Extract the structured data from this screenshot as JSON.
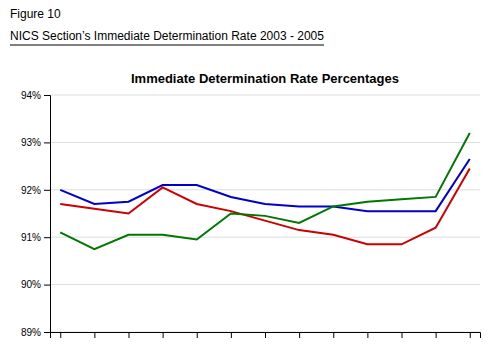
{
  "chart_data": {
    "type": "line",
    "title": "Immediate Determination Rate Percentages",
    "subtitle": "NICS Section’s Immediate Determination Rate 2003 - 2005",
    "annotations": [
      "Figure 10"
    ],
    "x": [
      0,
      1,
      2,
      3,
      4,
      5,
      6,
      7,
      8,
      9,
      10,
      11,
      12
    ],
    "series": [
      {
        "color": "#0000CC",
        "values": [
          92.0,
          91.7,
          91.75,
          92.1,
          92.1,
          91.85,
          91.7,
          91.65,
          91.65,
          91.55,
          91.55,
          91.55,
          92.65
        ]
      },
      {
        "color": "#CC0000",
        "values": [
          91.7,
          91.6,
          91.5,
          92.05,
          91.7,
          91.55,
          91.35,
          91.15,
          91.05,
          90.85,
          90.85,
          91.2,
          92.45
        ]
      },
      {
        "color": "#007700",
        "values": [
          91.1,
          90.75,
          91.05,
          91.05,
          90.95,
          91.5,
          91.45,
          91.3,
          91.65,
          91.75,
          91.8,
          91.85,
          93.2
        ]
      }
    ],
    "xlim": [
      -0.3,
      12.3
    ],
    "xticks": [
      0,
      1,
      2,
      3,
      4,
      5,
      6,
      7,
      8,
      9,
      10,
      11,
      12
    ],
    "ylim": [
      89,
      94
    ],
    "yticks": [
      {
        "value": 89,
        "label": "89%"
      },
      {
        "value": 90,
        "label": "90%"
      },
      {
        "value": 91,
        "label": "91%"
      },
      {
        "value": 92,
        "label": "92%"
      },
      {
        "value": 93,
        "label": "93%"
      },
      {
        "value": 94,
        "label": "94%"
      }
    ],
    "grid": true,
    "tick_labels": "y"
  }
}
